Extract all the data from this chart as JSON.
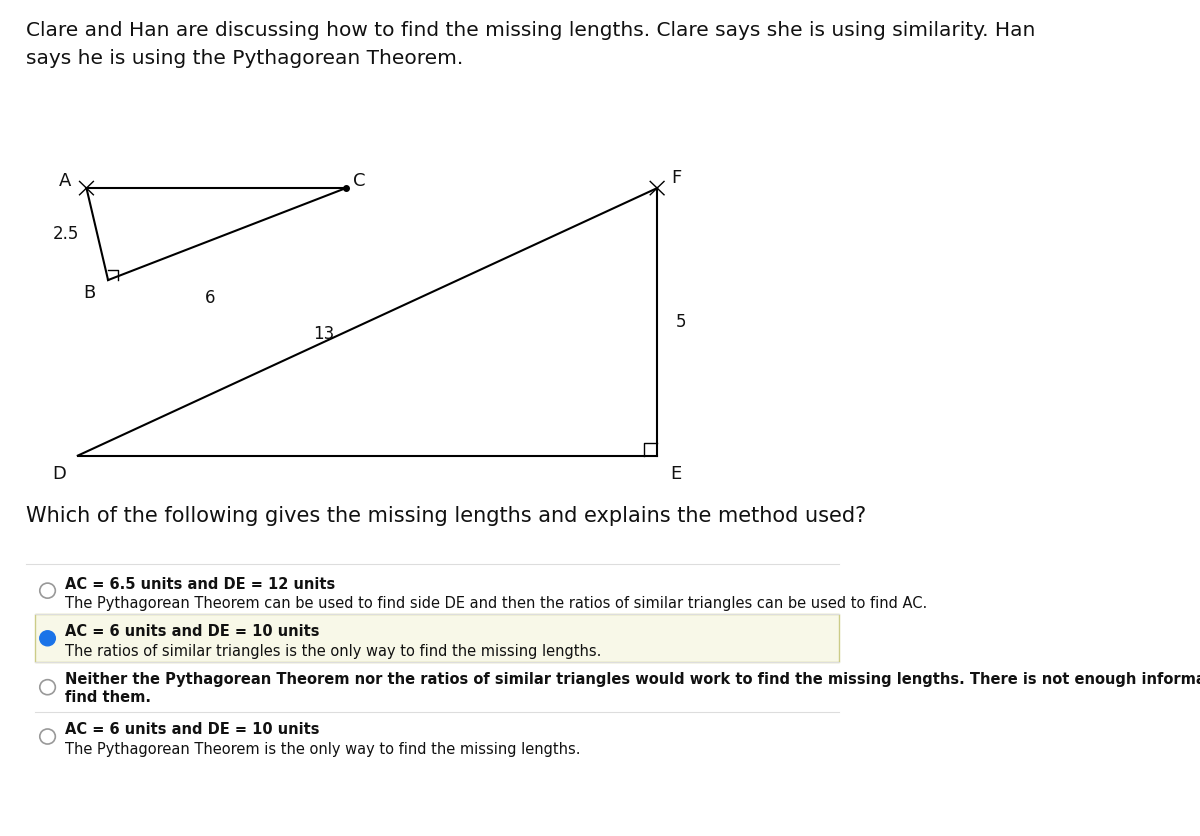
{
  "title_text": "Clare and Han are discussing how to find the missing lengths. Clare says she is using similarity. Han\nsays he is using the Pythagorean Theorem.",
  "question_text": "Which of the following gives the missing lengths and explains the method used?",
  "bg_color": "#ffffff",
  "options": [
    {
      "line1": "AC = 6.5 units and DE = 12 units",
      "line2": "The Pythagorean Theorem can be used to find side DE and then the ratios of similar triangles can be used to find AC.",
      "selected": false,
      "highlighted": false
    },
    {
      "line1": "AC = 6 units and DE = 10 units",
      "line2": "The ratios of similar triangles is the only way to find the missing lengths.",
      "selected": true,
      "highlighted": true
    },
    {
      "line1": "Neither the Pythagorean Theorem nor the ratios of similar triangles would work to find the missing lengths. There is not enough information to\nfind them.",
      "line2": "",
      "selected": false,
      "highlighted": false
    },
    {
      "line1": "AC = 6 units and DE = 10 units",
      "line2": "The Pythagorean Theorem is the only way to find the missing lengths.",
      "selected": false,
      "highlighted": false
    }
  ],
  "highlight_color": "#f8f8e8",
  "selected_color": "#1a73e8",
  "option_text_color": "#333333"
}
